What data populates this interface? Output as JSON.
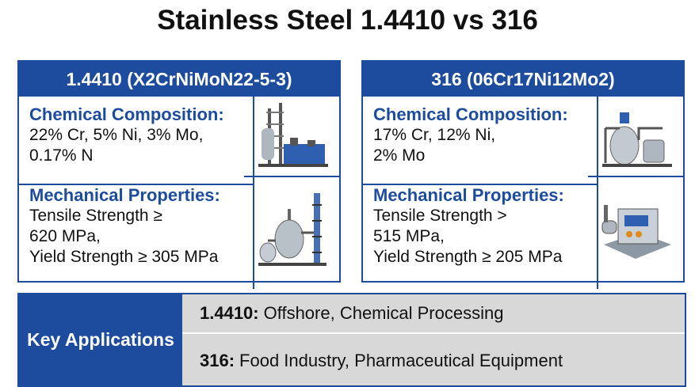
{
  "title": "Stainless Steel 1.4410 vs 316",
  "cards": [
    {
      "header": "1.4410 (X2CrNiMoN22-5-3)",
      "composition": {
        "heading": "Chemical Composition:",
        "lines": [
          "22% Cr, 5% Ni, 3% Mo,",
          "0.17% N"
        ]
      },
      "mechanical": {
        "heading": "Mechanical Properties:",
        "lines": [
          "Tensile Strength ≥",
          "620 MPa,",
          "Yield Strength ≥ 305 MPa"
        ]
      }
    },
    {
      "header": "316 (06Cr17Ni12Mo2)",
      "composition": {
        "heading": "Chemical Composition:",
        "lines": [
          "17% Cr, 12% Ni,",
          "2% Mo"
        ]
      },
      "mechanical": {
        "heading": "Mechanical Properties:",
        "lines": [
          "Tensile Strength >",
          "515 MPa,",
          "Yield Strength ≥ 205 MPa"
        ]
      }
    }
  ],
  "applications": {
    "label": "Key Applications",
    "rows": [
      {
        "label": "1.4410:",
        "text": "Offshore, Chemical Processing"
      },
      {
        "label": "316:",
        "text": "Food Industry, Pharmaceutical Equipment"
      }
    ]
  }
}
